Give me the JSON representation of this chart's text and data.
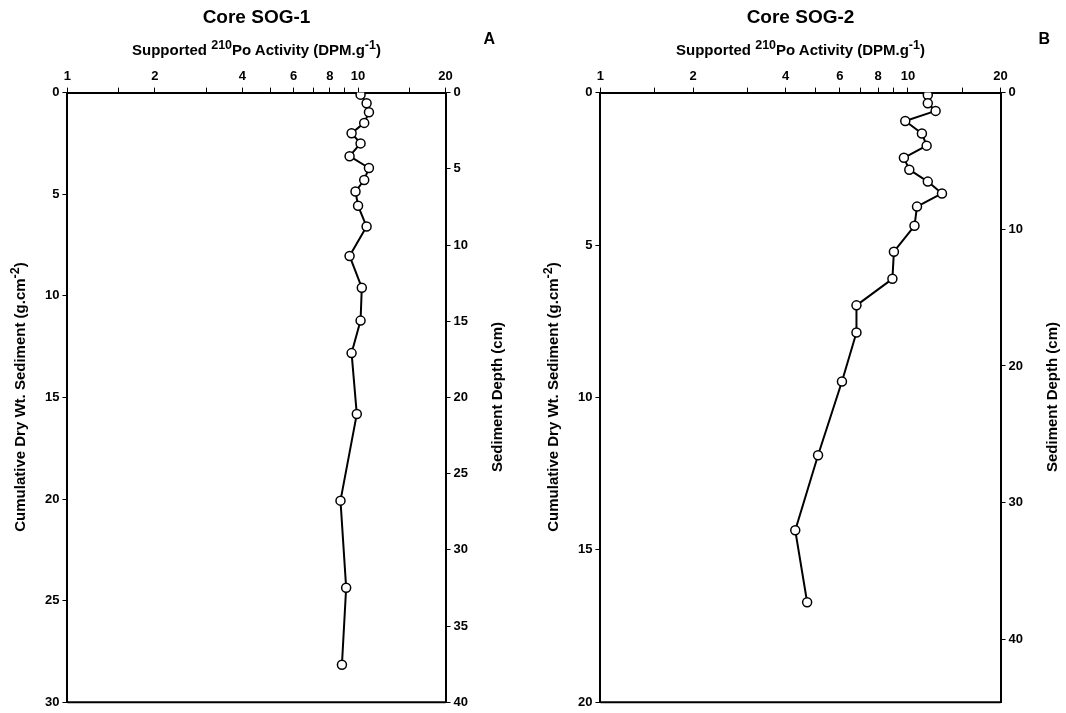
{
  "chart_data": [
    {
      "type": "line",
      "title": "Core SOG-1",
      "xlabel": "Supported $^{210}$Po Activity (DPM.g$^{-1}$)",
      "ylabel": "Cumulative Dry Wt. Sediment (g.cm$^{-2}$)",
      "y2label": "Sediment Depth (cm)",
      "annotations": [
        "A"
      ],
      "log": "x",
      "xlim": [
        1,
        20
      ],
      "xticks": [
        1,
        {
          "value": 1.5,
          "label": null
        },
        2,
        {
          "value": 3,
          "label": null
        },
        4,
        {
          "value": 5,
          "label": null
        },
        6,
        {
          "value": 7,
          "label": null
        },
        8,
        {
          "value": 9,
          "label": null
        },
        10,
        {
          "value": 15,
          "label": null
        },
        20
      ],
      "ylim": [
        30,
        0
      ],
      "yticks": [
        0,
        5,
        10,
        15,
        20,
        25,
        30
      ],
      "y2lim": [
        40,
        0
      ],
      "y2ticks": [
        0,
        5,
        10,
        15,
        20,
        25,
        30,
        35,
        40
      ],
      "marker": "circle",
      "line_style": "solid",
      "grid": false,
      "legend": false,
      "series": [
        {
          "color": "#000000",
          "x": [
            10.2,
            10.7,
            10.9,
            10.5,
            9.5,
            10.2,
            9.35,
            10.9,
            10.5,
            9.8,
            10.0,
            10.7,
            9.35,
            10.3,
            10.2,
            9.5,
            9.9,
            8.7,
            9.1,
            8.8
          ],
          "values": [
            0.1,
            0.52,
            0.97,
            1.49,
            2.0,
            2.5,
            3.13,
            3.71,
            4.3,
            4.87,
            5.57,
            6.59,
            8.04,
            9.6,
            11.22,
            12.82,
            15.82,
            20.08,
            24.37,
            28.16
          ]
        }
      ]
    },
    {
      "type": "line",
      "title": "Core SOG-2",
      "xlabel": "Supported $^{210}$Po Activity (DPM.g$^{-1}$)",
      "ylabel": "Cumulative Dry Wt. Sediment (g.cm$^{-2}$)",
      "y2label": "Sediment Depth (cm)",
      "annotations": [
        "B"
      ],
      "log": "x",
      "xlim": [
        1,
        20
      ],
      "xticks": [
        1,
        {
          "value": 1.5,
          "label": null
        },
        2,
        {
          "value": 3,
          "label": null
        },
        4,
        {
          "value": 5,
          "label": null
        },
        6,
        {
          "value": 7,
          "label": null
        },
        8,
        {
          "value": 9,
          "label": null
        },
        10,
        {
          "value": 15,
          "label": null
        },
        20
      ],
      "ylim": [
        20,
        0
      ],
      "yticks": [
        0,
        5,
        10,
        15,
        20
      ],
      "y2lim": [
        44.6,
        0
      ],
      "y2ticks": [
        0,
        10,
        20,
        30,
        40
      ],
      "marker": "circle",
      "line_style": "solid",
      "grid": false,
      "legend": false,
      "series": [
        {
          "color": "#000000",
          "x": [
            11.6,
            11.6,
            12.3,
            9.8,
            11.1,
            11.5,
            9.7,
            10.1,
            11.6,
            12.9,
            10.7,
            10.5,
            9.0,
            8.9,
            6.8,
            6.8,
            6.1,
            5.1,
            4.3,
            4.7
          ],
          "values": [
            0.08,
            0.35,
            0.6,
            0.93,
            1.34,
            1.74,
            2.14,
            2.53,
            2.92,
            3.31,
            3.74,
            4.37,
            5.22,
            6.11,
            6.98,
            7.87,
            9.48,
            11.9,
            14.36,
            16.72
          ]
        }
      ]
    }
  ]
}
